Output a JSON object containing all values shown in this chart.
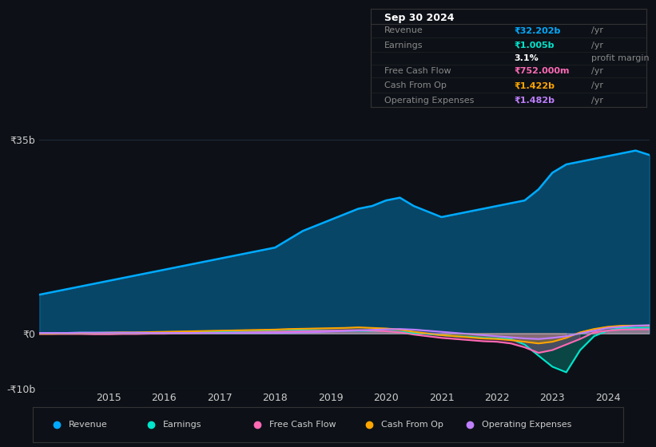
{
  "background_color": "#0d1117",
  "plot_bg_color": "#0d1117",
  "grid_color": "#1e2a3a",
  "title_box": {
    "date": "Sep 30 2024",
    "rows": [
      {
        "label": "Revenue",
        "value": "₹32.202b /yr",
        "value_color": "#00bfff"
      },
      {
        "label": "Earnings",
        "value": "₹1.005b /yr",
        "value_color": "#00e5cc"
      },
      {
        "label": "",
        "value": "3.1% profit margin",
        "value_color": "#ffffff"
      },
      {
        "label": "Free Cash Flow",
        "value": "₹752.000m /yr",
        "value_color": "#ff69b4"
      },
      {
        "label": "Cash From Op",
        "value": "₹1.422b /yr",
        "value_color": "#ffa500"
      },
      {
        "label": "Operating Expenses",
        "value": "₹1.482b /yr",
        "value_color": "#bf7fff"
      }
    ]
  },
  "ylim": [
    -10000000000.0,
    40000000000.0
  ],
  "yticks": [
    -10000000000.0,
    0,
    17500000000.0,
    35000000000.0
  ],
  "ytick_labels": [
    "-₹10b",
    "₹0",
    "",
    "₹35b"
  ],
  "x_years": [
    2013.75,
    2014.0,
    2014.25,
    2014.5,
    2014.75,
    2015.0,
    2015.25,
    2015.5,
    2015.75,
    2016.0,
    2016.25,
    2016.5,
    2016.75,
    2017.0,
    2017.25,
    2017.5,
    2017.75,
    2018.0,
    2018.25,
    2018.5,
    2018.75,
    2019.0,
    2019.25,
    2019.5,
    2019.75,
    2020.0,
    2020.25,
    2020.5,
    2020.75,
    2021.0,
    2021.25,
    2021.5,
    2021.75,
    2022.0,
    2022.25,
    2022.5,
    2022.75,
    2023.0,
    2023.25,
    2023.5,
    2023.75,
    2024.0,
    2024.25,
    2024.5,
    2024.75
  ],
  "revenue": [
    7000000000.0,
    7500000000.0,
    8000000000.0,
    8500000000.0,
    9000000000.0,
    9500000000.0,
    10000000000.0,
    10500000000.0,
    11000000000.0,
    11500000000.0,
    12000000000.0,
    12500000000.0,
    13000000000.0,
    13500000000.0,
    14000000000.0,
    14500000000.0,
    15000000000.0,
    15500000000.0,
    17000000000.0,
    18500000000.0,
    19500000000.0,
    20500000000.0,
    21500000000.0,
    22500000000.0,
    23000000000.0,
    24000000000.0,
    24500000000.0,
    23000000000.0,
    22000000000.0,
    21000000000.0,
    21500000000.0,
    22000000000.0,
    22500000000.0,
    23000000000.0,
    23500000000.0,
    24000000000.0,
    26000000000.0,
    29000000000.0,
    30500000000.0,
    31000000000.0,
    31500000000.0,
    32000000000.0,
    32500000000.0,
    33000000000.0,
    32202000000.0
  ],
  "earnings": [
    100000000.0,
    100000000.0,
    100000000.0,
    150000000.0,
    150000000.0,
    150000000.0,
    150000000.0,
    150000000.0,
    200000000.0,
    200000000.0,
    200000000.0,
    250000000.0,
    300000000.0,
    300000000.0,
    350000000.0,
    350000000.0,
    400000000.0,
    400000000.0,
    500000000.0,
    550000000.0,
    550000000.0,
    500000000.0,
    500000000.0,
    500000000.0,
    450000000.0,
    400000000.0,
    300000000.0,
    100000000.0,
    -100000000.0,
    -300000000.0,
    -500000000.0,
    -600000000.0,
    -800000000.0,
    -900000000.0,
    -1000000000.0,
    -2000000000.0,
    -4000000000.0,
    -6000000000.0,
    -7000000000.0,
    -3000000000.0,
    -500000000.0,
    500000000.0,
    1000000000.0,
    1000000000.0,
    1005000000.0
  ],
  "free_cash_flow": [
    -100000000.0,
    -100000000.0,
    -100000000.0,
    -100000000.0,
    -150000000.0,
    -150000000.0,
    -100000000.0,
    -100000000.0,
    -50000000.0,
    -50000000.0,
    0.0,
    50000000.0,
    100000000.0,
    100000000.0,
    150000000.0,
    200000000.0,
    250000000.0,
    300000000.0,
    350000000.0,
    400000000.0,
    450000000.0,
    500000000.0,
    550000000.0,
    600000000.0,
    500000000.0,
    400000000.0,
    200000000.0,
    -200000000.0,
    -500000000.0,
    -800000000.0,
    -1000000000.0,
    -1200000000.0,
    -1400000000.0,
    -1500000000.0,
    -1800000000.0,
    -2500000000.0,
    -3500000000.0,
    -3000000000.0,
    -2000000000.0,
    -1000000000.0,
    200000000.0,
    500000000.0,
    700000000.0,
    750000000.0,
    752000000.0
  ],
  "cash_from_op": [
    -50000000.0,
    -50000000.0,
    0.0,
    50000000.0,
    100000000.0,
    150000000.0,
    200000000.0,
    200000000.0,
    250000000.0,
    300000000.0,
    350000000.0,
    400000000.0,
    450000000.0,
    500000000.0,
    550000000.0,
    600000000.0,
    650000000.0,
    700000000.0,
    800000000.0,
    850000000.0,
    900000000.0,
    950000000.0,
    1000000000.0,
    1100000000.0,
    1000000000.0,
    900000000.0,
    700000000.0,
    300000000.0,
    0.0,
    -300000000.0,
    -500000000.0,
    -700000000.0,
    -900000000.0,
    -1000000000.0,
    -1200000000.0,
    -1500000000.0,
    -1800000000.0,
    -1500000000.0,
    -800000000.0,
    200000000.0,
    800000000.0,
    1200000000.0,
    1400000000.0,
    1422000000.0,
    1422000000.0
  ],
  "op_expenses": [
    100000000.0,
    100000000.0,
    100000000.0,
    150000000.0,
    150000000.0,
    150000000.0,
    150000000.0,
    150000000.0,
    100000000.0,
    100000000.0,
    100000000.0,
    100000000.0,
    100000000.0,
    100000000.0,
    100000000.0,
    100000000.0,
    100000000.0,
    100000000.0,
    150000000.0,
    200000000.0,
    250000000.0,
    350000000.0,
    450000000.0,
    550000000.0,
    650000000.0,
    750000000.0,
    800000000.0,
    700000000.0,
    500000000.0,
    300000000.0,
    100000000.0,
    -100000000.0,
    -300000000.0,
    -500000000.0,
    -700000000.0,
    -900000000.0,
    -1000000000.0,
    -800000000.0,
    -500000000.0,
    0.0,
    500000000.0,
    1000000000.0,
    1200000000.0,
    1400000000.0,
    1482000000.0
  ],
  "revenue_color": "#00aaff",
  "earnings_color": "#00e5cc",
  "fcf_color": "#ff69b4",
  "cashop_color": "#ffa500",
  "opex_color": "#bf7fff",
  "legend_entries": [
    "Revenue",
    "Earnings",
    "Free Cash Flow",
    "Cash From Op",
    "Operating Expenses"
  ]
}
